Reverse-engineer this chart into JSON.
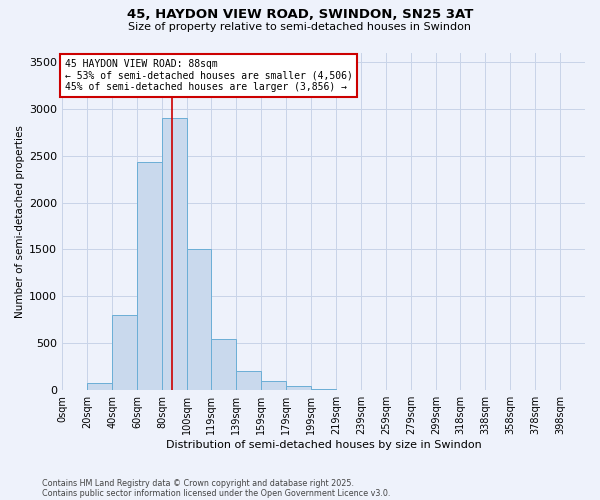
{
  "title_line1": "45, HAYDON VIEW ROAD, SWINDON, SN25 3AT",
  "title_line2": "Size of property relative to semi-detached houses in Swindon",
  "xlabel": "Distribution of semi-detached houses by size in Swindon",
  "ylabel": "Number of semi-detached properties",
  "bar_color": "#c9d9ed",
  "bar_edge_color": "#6baed6",
  "categories": [
    "0sqm",
    "20sqm",
    "40sqm",
    "60sqm",
    "80sqm",
    "100sqm",
    "119sqm",
    "139sqm",
    "159sqm",
    "179sqm",
    "199sqm",
    "219sqm",
    "239sqm",
    "259sqm",
    "279sqm",
    "299sqm",
    "318sqm",
    "338sqm",
    "358sqm",
    "378sqm",
    "398sqm"
  ],
  "values": [
    0,
    75,
    800,
    2430,
    2900,
    1500,
    550,
    200,
    100,
    40,
    10,
    5,
    3,
    2,
    2,
    2,
    1,
    0,
    0,
    0,
    0
  ],
  "ylim": [
    0,
    3600
  ],
  "yticks": [
    0,
    500,
    1000,
    1500,
    2000,
    2500,
    3000,
    3500
  ],
  "property_size": 88,
  "bin_edges": [
    0,
    20,
    40,
    60,
    80,
    100,
    119,
    139,
    159,
    179,
    199,
    219,
    239,
    259,
    279,
    299,
    318,
    338,
    358,
    378,
    398,
    418
  ],
  "annotation_title": "45 HAYDON VIEW ROAD: 88sqm",
  "annotation_line2": "← 53% of semi-detached houses are smaller (4,506)",
  "annotation_line3": "45% of semi-detached houses are larger (3,856) →",
  "red_line_color": "#cc0000",
  "annotation_box_color": "#ffffff",
  "annotation_box_edge": "#cc0000",
  "footnote1": "Contains HM Land Registry data © Crown copyright and database right 2025.",
  "footnote2": "Contains public sector information licensed under the Open Government Licence v3.0.",
  "background_color": "#eef2fb"
}
